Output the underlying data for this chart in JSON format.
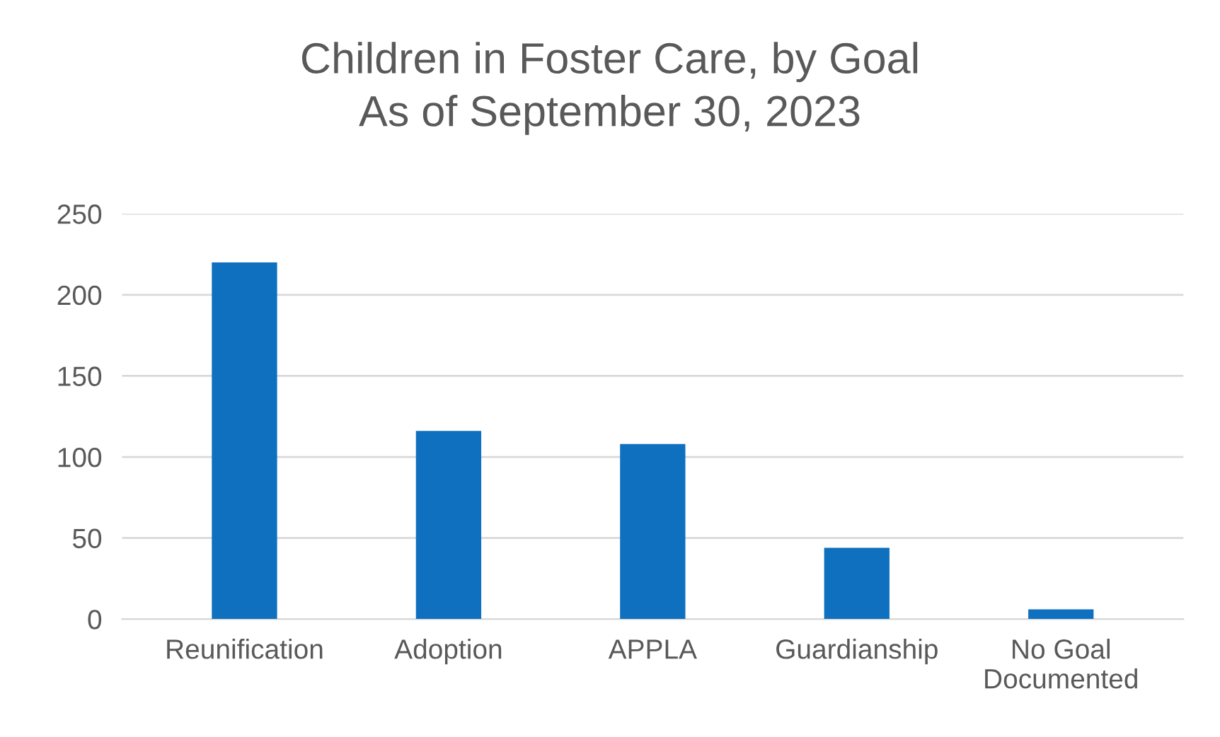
{
  "chart_data": {
    "type": "bar",
    "title": "Children in Foster Care, by Goal\nAs of September 30, 2023",
    "categories": [
      "Reunification",
      "Adoption",
      "APPLA",
      "Guardianship",
      "No Goal\nDocumented"
    ],
    "values": [
      220,
      116,
      108,
      44,
      6
    ],
    "color": "#0f70c0",
    "ylim": [
      0,
      250
    ],
    "yticks": [
      0,
      50,
      100,
      150,
      200,
      250
    ],
    "grid": "y"
  }
}
